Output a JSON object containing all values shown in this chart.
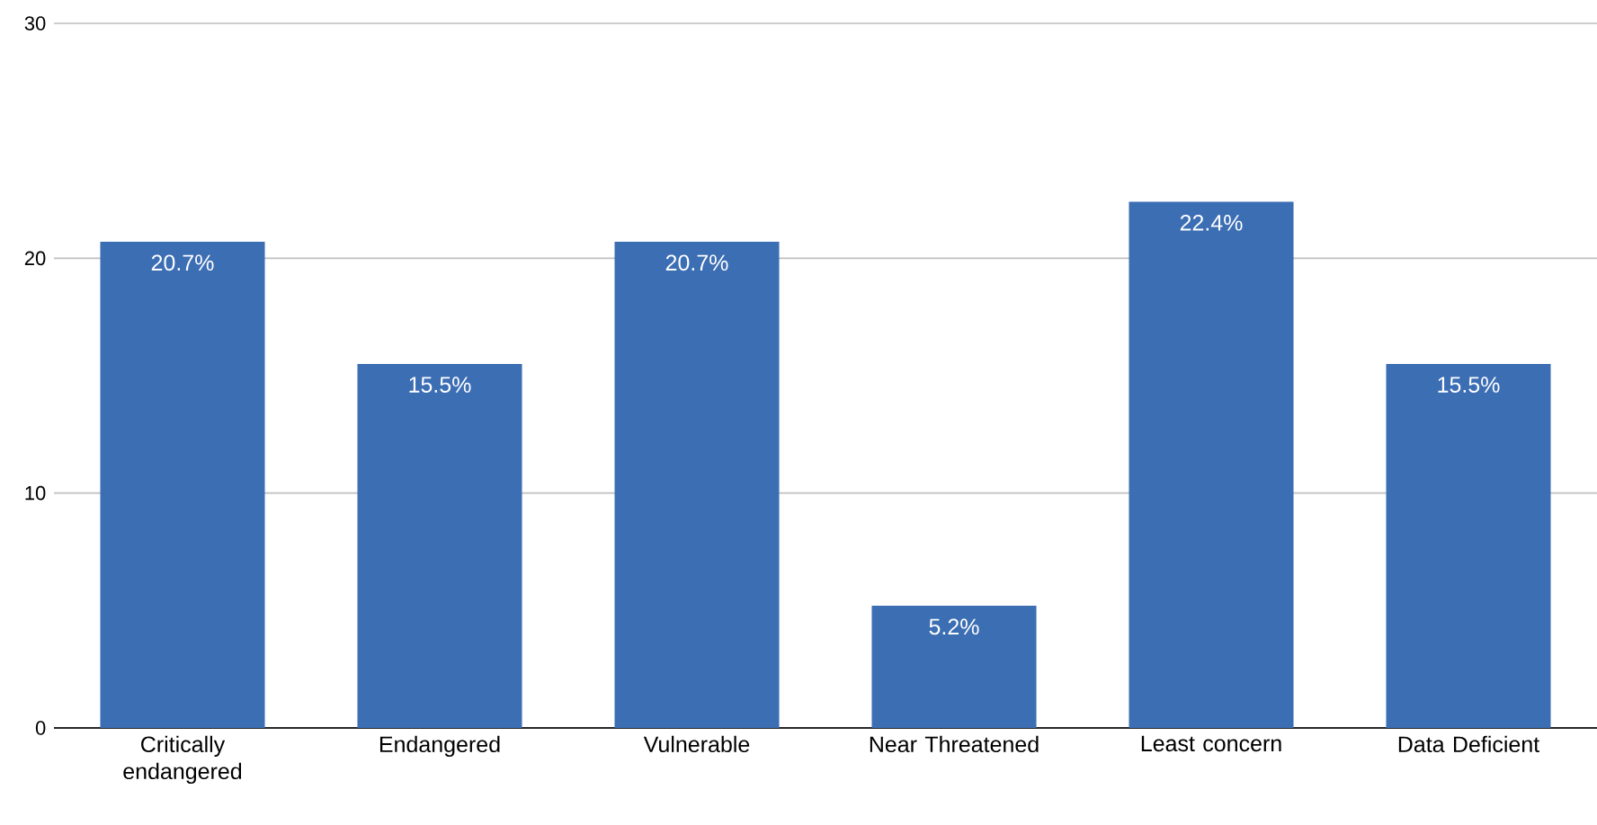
{
  "chart_data": {
    "type": "bar",
    "categories": [
      "Critically endangered",
      "Endangered",
      "Vulnerable",
      "Near Threatened",
      "Least concern",
      "Data Deficient"
    ],
    "values": [
      20.7,
      15.5,
      20.7,
      5.2,
      22.4,
      15.5
    ],
    "value_labels": [
      "20.7%",
      "15.5%",
      "20.7%",
      "5.2%",
      "22.4%",
      "15.5%"
    ],
    "color": "#3c6eb4",
    "ylim": [
      0,
      30
    ],
    "yticks": [
      0,
      10,
      20,
      30
    ],
    "grid": "y"
  }
}
